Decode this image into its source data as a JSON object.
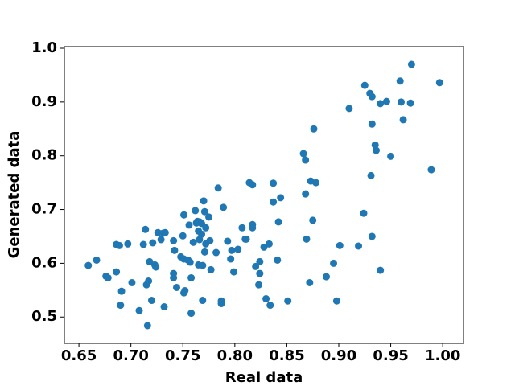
{
  "chart_data": {
    "type": "scatter",
    "xlabel": "Real data",
    "ylabel": "Generated data",
    "color": "#1f77b4",
    "xlim": [
      0.636,
      1.02
    ],
    "ylim": [
      0.451,
      1.003
    ],
    "xticks": [
      0.65,
      {
        "value": 0.7,
        "label": "0.70"
      },
      0.75,
      {
        "value": 0.8,
        "label": "0.80"
      },
      0.85,
      {
        "value": 0.9,
        "label": "0.90"
      },
      0.95,
      {
        "value": 1,
        "label": "1.00"
      }
    ],
    "yticks": [
      0.5,
      0.6,
      0.7,
      0.8,
      0.9,
      {
        "value": 1,
        "label": "1.0"
      }
    ],
    "grid": false,
    "x": [
      0.659,
      0.667,
      0.676,
      0.678,
      0.686,
      0.689,
      0.686,
      0.691,
      0.69,
      0.697,
      0.701,
      0.708,
      0.712,
      0.714,
      0.715,
      0.717,
      0.716,
      0.718,
      0.72,
      0.721,
      0.723,
      0.724,
      0.726,
      0.729,
      0.731,
      0.732,
      0.733,
      0.741,
      0.742,
      0.741,
      0.741,
      0.744,
      0.748,
      0.75,
      0.751,
      0.751,
      0.751,
      0.752,
      0.755,
      0.756,
      0.757,
      0.758,
      0.758,
      0.76,
      0.762,
      0.763,
      0.764,
      0.765,
      0.765,
      0.766,
      0.766,
      0.768,
      0.768,
      0.769,
      0.769,
      0.77,
      0.771,
      0.771,
      0.772,
      0.772,
      0.775,
      0.776,
      0.777,
      0.782,
      0.784,
      0.787,
      0.787,
      0.789,
      0.793,
      0.796,
      0.797,
      0.799,
      0.803,
      0.807,
      0.81,
      0.811,
      0.814,
      0.817,
      0.817,
      0.817,
      0.82,
      0.823,
      0.824,
      0.824,
      0.828,
      0.83,
      0.833,
      0.834,
      0.837,
      0.837,
      0.841,
      0.842,
      0.844,
      0.851,
      0.866,
      0.868,
      0.868,
      0.869,
      0.872,
      0.873,
      0.875,
      0.876,
      0.878,
      0.888,
      0.895,
      0.898,
      0.901,
      0.91,
      0.919,
      0.924,
      0.925,
      0.93,
      0.932,
      0.932,
      0.931,
      0.932,
      0.935,
      0.936,
      0.94,
      0.94,
      0.946,
      0.95,
      0.959,
      0.96,
      0.962,
      0.969,
      0.97,
      0.989,
      0.997
    ],
    "values": [
      0.596,
      0.606,
      0.576,
      0.573,
      0.635,
      0.633,
      0.584,
      0.548,
      0.522,
      0.636,
      0.564,
      0.512,
      0.635,
      0.663,
      0.56,
      0.567,
      0.484,
      0.603,
      0.531,
      0.638,
      0.597,
      0.593,
      0.657,
      0.644,
      0.656,
      0.519,
      0.657,
      0.642,
      0.624,
      0.581,
      0.573,
      0.555,
      0.612,
      0.651,
      0.69,
      0.545,
      0.608,
      0.549,
      0.606,
      0.671,
      0.602,
      0.573,
      0.507,
      0.639,
      0.698,
      0.675,
      0.678,
      0.597,
      0.66,
      0.677,
      0.644,
      0.654,
      0.674,
      0.596,
      0.531,
      0.716,
      0.696,
      0.621,
      0.636,
      0.666,
      0.686,
      0.642,
      0.588,
      0.62,
      0.74,
      0.525,
      0.53,
      0.704,
      0.641,
      0.608,
      0.624,
      0.584,
      0.626,
      0.666,
      0.645,
      0.645,
      0.75,
      0.746,
      0.672,
      0.666,
      0.594,
      0.56,
      0.581,
      0.603,
      0.63,
      0.534,
      0.636,
      0.522,
      0.714,
      0.749,
      0.606,
      0.677,
      0.722,
      0.53,
      0.804,
      0.792,
      0.729,
      0.645,
      0.564,
      0.753,
      0.68,
      0.85,
      0.75,
      0.575,
      0.6,
      0.53,
      0.633,
      0.888,
      0.632,
      0.693,
      0.931,
      0.916,
      0.91,
      0.859,
      0.763,
      0.65,
      0.82,
      0.81,
      0.897,
      0.587,
      0.901,
      0.799,
      0.939,
      0.9,
      0.867,
      0.898,
      0.97,
      0.774,
      0.936
    ]
  }
}
